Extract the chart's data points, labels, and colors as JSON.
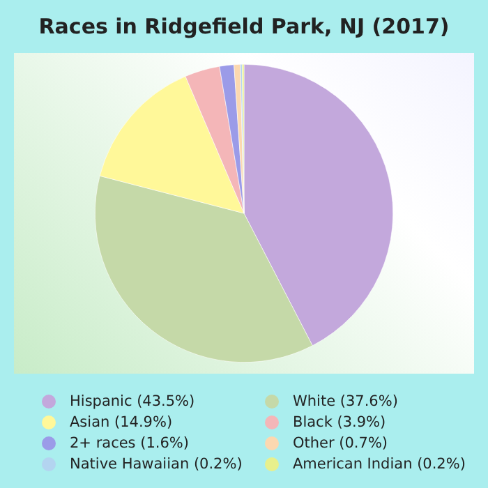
{
  "chart_data": {
    "type": "pie",
    "title": "Races in Ridgefield Park, NJ (2017)",
    "categories": [
      "Hispanic (43.5%)",
      "White (37.6%)",
      "Asian (14.9%)",
      "Black (3.9%)",
      "2+ races (1.6%)",
      "Other (0.7%)",
      "Native Hawaiian (0.2%)",
      "American Indian (0.2%)"
    ],
    "values": [
      43.5,
      37.6,
      14.9,
      3.9,
      1.6,
      0.7,
      0.2,
      0.2
    ],
    "colors": [
      "#c3a8dc",
      "#c5d9a8",
      "#fff899",
      "#f4b6b8",
      "#9b9be8",
      "#fcd8b0",
      "#b3d4f0",
      "#e8f08c"
    ],
    "legend": "bottom"
  }
}
